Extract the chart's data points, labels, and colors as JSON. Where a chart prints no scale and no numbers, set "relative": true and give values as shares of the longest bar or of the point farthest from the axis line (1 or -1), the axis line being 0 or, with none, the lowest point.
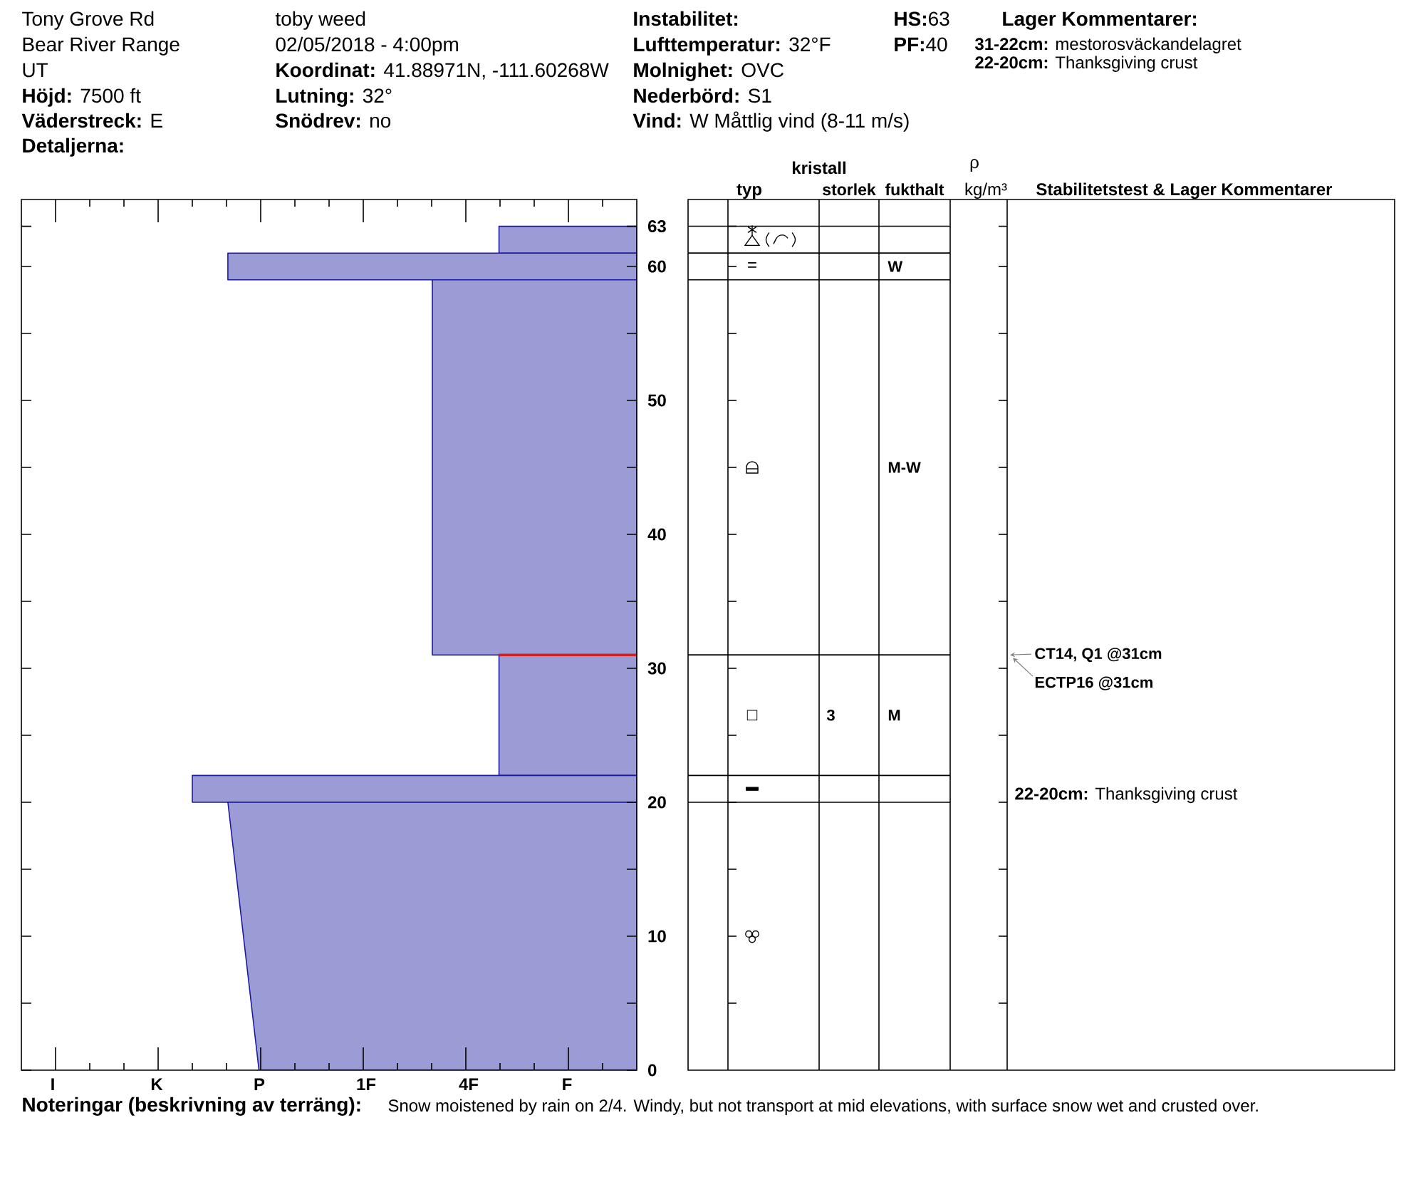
{
  "chart_data": [
    {
      "type": "other",
      "annotations": [
        "Tony Grove Rd",
        "Bear River Range",
        "UT",
        "**Höjd:** 7500 ft",
        "**Väderstreck:** E",
        "Detaljerna:",
        "toby weed",
        "02/05/2018 - 4:00pm",
        "**Koordinat:** 41.88971N, -111.60268W",
        "**Lutning:** 32°",
        "**Snödrev:** no",
        "Instabilitet:",
        "**Lufttemperatur:** 32°F",
        "**Molnighet:** OVC",
        "**Nederbörd:** S1",
        "**Vind:** W Måttlig vind (8-11 m/s)",
        "**HS:**63",
        "**PF:**40",
        "Lager Kommentarer:",
        "**31-22cm:** mestorosväckandelagret",
        "**22-20cm:** Thanksgiving crust",
        "Noteringar (beskrivning av terräng):",
        "Snow moistened by rain on 2/4.  Windy, but not transport at mid elevations, with surface snow wet and crusted over."
      ]
    },
    {
      "type": "area",
      "orientation": "horizontal",
      "relative": true,
      "ylim": [
        0,
        65
      ],
      "yticks": [
        0,
        {
          "value": 5,
          "label": null
        },
        10,
        {
          "value": 15,
          "label": null
        },
        20,
        {
          "value": 25,
          "label": null
        },
        30,
        {
          "value": 35,
          "label": null
        },
        40,
        {
          "value": 45,
          "label": null
        },
        50,
        {
          "value": 55,
          "label": null
        },
        60,
        63
      ],
      "series": [
        {
          "color": "#9b9bd6",
          "x": [
            61,
            63
          ],
          "values": [
            -0.31,
            -0.31
          ]
        },
        {
          "color": "#9b9bd6",
          "x": [
            59,
            61
          ],
          "values": [
            -0.92,
            -0.92
          ]
        },
        {
          "color": "#9b9bd6",
          "x": [
            31,
            59
          ],
          "values": [
            -0.46,
            -0.46
          ]
        },
        {
          "color": "#9b9bd6",
          "x": [
            22,
            31
          ],
          "values": [
            -0.31,
            -0.31
          ]
        },
        {
          "color": "#9b9bd6",
          "x": [
            20,
            22
          ],
          "values": [
            -1,
            -1
          ]
        },
        {
          "color": "#9b9bd6",
          "x": [
            0,
            20
          ],
          "values": [
            -0.85,
            -0.92
          ]
        },
        {
          "type": "line",
          "color": "#cc2222",
          "x": [
            31,
            31
          ],
          "values": [
            -0.31,
            0
          ]
        }
      ],
      "annotations": [
        "I",
        "K",
        "P",
        "1F",
        "4F",
        "F"
      ]
    },
    {
      "type": "other",
      "annotations": [
        "kristall",
        "typ",
        "storlek",
        "fukthalt",
        "ρ",
        "kg/m³",
        "Stabilitetstest & Lager Kommentarer",
        "=",
        "W",
        "M-W",
        "□",
        "3",
        "M",
        "▬",
        "CT14, Q1 @31cm",
        "ECTP16 @31cm",
        "**22-20cm:** Thanksgiving crust"
      ]
    }
  ]
}
